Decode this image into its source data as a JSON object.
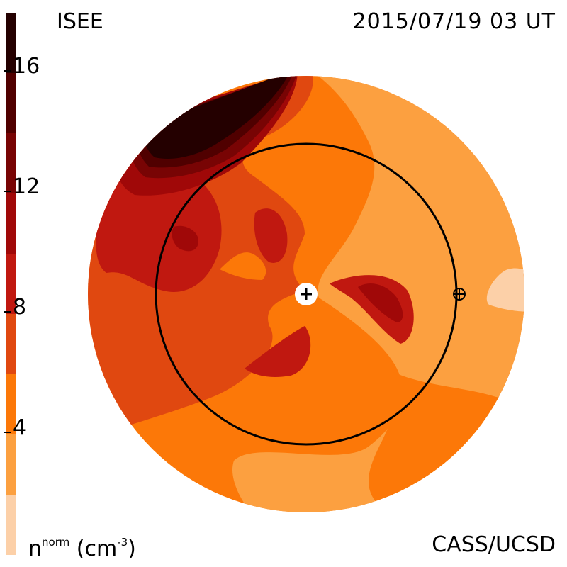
{
  "header": {
    "source": "ISEE",
    "timestamp": "2015/07/19 03 UT"
  },
  "footer": {
    "quantity_base": "n",
    "quantity_sup": "norm",
    "units_open": "(cm",
    "units_sup": "-3",
    "units_close": ")",
    "credit": "CASS/UCSD"
  },
  "colorbar": {
    "levels": [
      {
        "range": [
          0,
          2
        ],
        "color": "#fcd0a8"
      },
      {
        "range": [
          2,
          4
        ],
        "color": "#fca040"
      },
      {
        "range": [
          4,
          6
        ],
        "color": "#fc7808"
      },
      {
        "range": [
          6,
          8
        ],
        "color": "#e04810"
      },
      {
        "range": [
          8,
          10
        ],
        "color": "#c01810"
      },
      {
        "range": [
          10,
          12
        ],
        "color": "#a00808"
      },
      {
        "range": [
          12,
          14
        ],
        "color": "#780404"
      },
      {
        "range": [
          14,
          16
        ],
        "color": "#500000"
      },
      {
        "range": [
          16,
          18
        ],
        "color": "#240000"
      }
    ],
    "tick_labels": [
      "4",
      "8",
      "12",
      "16"
    ]
  },
  "map": {
    "sun_marker": "sun-plus-icon",
    "earth_marker": "earth-circled-plus-icon",
    "orbit": "earth-orbit-circle"
  }
}
